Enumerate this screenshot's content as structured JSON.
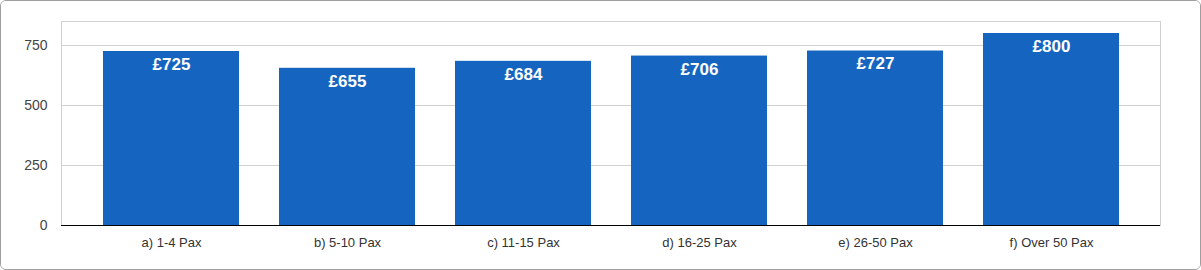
{
  "chart_data": {
    "type": "bar",
    "categories": [
      "a) 1-4 Pax",
      "b) 5-10 Pax",
      "c) 11-15 Pax",
      "d) 16-25 Pax",
      "e) 26-50 Pax",
      "f) Over 50 Pax"
    ],
    "values": [
      725,
      655,
      684,
      706,
      727,
      800
    ],
    "value_labels": [
      "£725",
      "£655",
      "£684",
      "£706",
      "£727",
      "£800"
    ],
    "color": "#1565c0",
    "ylim": [
      0,
      850
    ],
    "yticks": [
      0,
      250,
      500,
      750
    ],
    "grid": true,
    "data_labels": true
  }
}
